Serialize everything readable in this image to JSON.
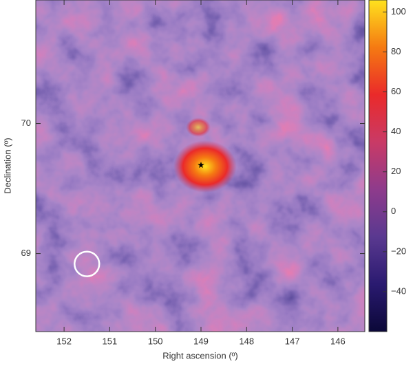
{
  "chart_data": {
    "type": "skymap",
    "x_label": "Right ascension (º)",
    "y_label": "Declination (º)",
    "xlim": [
      152.62,
      145.41
    ],
    "xticks": [
      152,
      151,
      150,
      149,
      148,
      147,
      146
    ],
    "ylim": [
      68.4,
      70.95
    ],
    "yticks": [
      69,
      70
    ],
    "colorbar": {
      "clim": [
        -60,
        106
      ],
      "ticks": [
        100,
        80,
        60,
        40,
        20,
        0,
        {
          "value": -20,
          "label": "−20"
        },
        {
          "value": -40,
          "label": "−40"
        }
      ],
      "colormap": [
        "#0b0838",
        "#2a1a70",
        "#5a3990",
        "#8e3b8c",
        "#c93a66",
        "#ea2a2a",
        "#f57a12",
        "#ffe21e"
      ]
    },
    "source": {
      "x": 149.0,
      "y": 69.68
    },
    "psf_circle": {
      "x": 151.5,
      "y": 68.92,
      "radius": 0.095
    }
  }
}
